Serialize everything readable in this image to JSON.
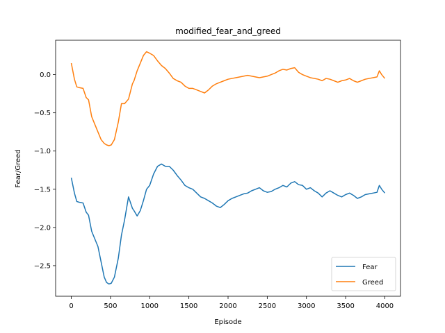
{
  "chart_data": {
    "type": "line",
    "title": "modified_fear_and_greed",
    "xlabel": "Episode",
    "ylabel": "Fear/Greed",
    "xlim": [
      -200,
      4200
    ],
    "ylim": [
      -2.9,
      0.45
    ],
    "xticks": [
      0,
      500,
      1000,
      1500,
      2000,
      2500,
      3000,
      3500,
      4000
    ],
    "xtick_labels": [
      "0",
      "500",
      "1000",
      "1500",
      "2000",
      "2500",
      "3000",
      "3500",
      "4000"
    ],
    "yticks": [
      -2.5,
      -2.0,
      -1.5,
      -1.0,
      -0.5,
      0.0
    ],
    "ytick_labels": [
      "−2.5",
      "−2.0",
      "−1.5",
      "−1.0",
      "−0.5",
      "0.0"
    ],
    "grid": false,
    "legend_position": "lower-right",
    "series": [
      {
        "name": "Fear",
        "color": "#1f77b4",
        "x": [
          0,
          40,
          70,
          100,
          150,
          190,
          220,
          260,
          300,
          340,
          380,
          420,
          450,
          480,
          510,
          550,
          600,
          640,
          680,
          730,
          780,
          800,
          840,
          880,
          920,
          960,
          1000,
          1050,
          1100,
          1150,
          1200,
          1250,
          1300,
          1350,
          1400,
          1450,
          1500,
          1550,
          1600,
          1650,
          1700,
          1750,
          1800,
          1850,
          1900,
          1950,
          2000,
          2050,
          2100,
          2150,
          2200,
          2250,
          2300,
          2350,
          2400,
          2450,
          2500,
          2550,
          2600,
          2650,
          2700,
          2750,
          2800,
          2850,
          2900,
          2950,
          3000,
          3050,
          3100,
          3150,
          3200,
          3250,
          3300,
          3350,
          3400,
          3450,
          3500,
          3550,
          3600,
          3650,
          3700,
          3750,
          3800,
          3850,
          3900,
          3930,
          3960,
          4000
        ],
        "y": [
          -1.35,
          -1.55,
          -1.66,
          -1.67,
          -1.68,
          -1.8,
          -1.84,
          -2.05,
          -2.15,
          -2.25,
          -2.45,
          -2.65,
          -2.72,
          -2.74,
          -2.73,
          -2.65,
          -2.4,
          -2.1,
          -1.9,
          -1.6,
          -1.75,
          -1.78,
          -1.85,
          -1.78,
          -1.65,
          -1.5,
          -1.45,
          -1.3,
          -1.2,
          -1.17,
          -1.2,
          -1.2,
          -1.25,
          -1.32,
          -1.38,
          -1.45,
          -1.48,
          -1.5,
          -1.55,
          -1.6,
          -1.62,
          -1.65,
          -1.68,
          -1.72,
          -1.74,
          -1.7,
          -1.65,
          -1.62,
          -1.6,
          -1.58,
          -1.56,
          -1.55,
          -1.52,
          -1.5,
          -1.48,
          -1.52,
          -1.54,
          -1.53,
          -1.5,
          -1.48,
          -1.45,
          -1.47,
          -1.42,
          -1.4,
          -1.44,
          -1.45,
          -1.5,
          -1.48,
          -1.52,
          -1.55,
          -1.6,
          -1.55,
          -1.52,
          -1.55,
          -1.58,
          -1.6,
          -1.57,
          -1.55,
          -1.58,
          -1.62,
          -1.6,
          -1.57,
          -1.56,
          -1.55,
          -1.54,
          -1.45,
          -1.5,
          -1.55
        ]
      },
      {
        "name": "Greed",
        "color": "#ff7f0e",
        "x": [
          0,
          40,
          70,
          100,
          150,
          190,
          220,
          260,
          300,
          340,
          380,
          420,
          450,
          480,
          510,
          550,
          600,
          640,
          680,
          730,
          780,
          800,
          840,
          880,
          920,
          960,
          1000,
          1050,
          1100,
          1150,
          1200,
          1250,
          1300,
          1350,
          1400,
          1450,
          1500,
          1550,
          1600,
          1650,
          1700,
          1750,
          1800,
          1850,
          1900,
          1950,
          2000,
          2050,
          2100,
          2150,
          2200,
          2250,
          2300,
          2350,
          2400,
          2450,
          2500,
          2550,
          2600,
          2650,
          2700,
          2750,
          2800,
          2850,
          2900,
          2950,
          3000,
          3050,
          3100,
          3150,
          3200,
          3250,
          3300,
          3350,
          3400,
          3450,
          3500,
          3550,
          3600,
          3650,
          3700,
          3750,
          3800,
          3850,
          3900,
          3930,
          3960,
          4000
        ],
        "y": [
          0.15,
          -0.06,
          -0.16,
          -0.17,
          -0.18,
          -0.3,
          -0.33,
          -0.55,
          -0.65,
          -0.75,
          -0.85,
          -0.9,
          -0.92,
          -0.93,
          -0.92,
          -0.85,
          -0.62,
          -0.38,
          -0.38,
          -0.32,
          -0.12,
          -0.08,
          0.05,
          0.15,
          0.25,
          0.3,
          0.28,
          0.25,
          0.18,
          0.12,
          0.08,
          0.02,
          -0.05,
          -0.08,
          -0.1,
          -0.15,
          -0.18,
          -0.18,
          -0.2,
          -0.22,
          -0.24,
          -0.2,
          -0.15,
          -0.12,
          -0.1,
          -0.08,
          -0.06,
          -0.05,
          -0.04,
          -0.03,
          -0.02,
          -0.01,
          -0.02,
          -0.03,
          -0.04,
          -0.03,
          -0.02,
          0.0,
          0.02,
          0.05,
          0.07,
          0.06,
          0.08,
          0.09,
          0.03,
          0.0,
          -0.02,
          -0.04,
          -0.05,
          -0.06,
          -0.08,
          -0.05,
          -0.06,
          -0.08,
          -0.1,
          -0.08,
          -0.07,
          -0.05,
          -0.08,
          -0.1,
          -0.08,
          -0.06,
          -0.05,
          -0.04,
          -0.03,
          0.05,
          0.0,
          -0.05
        ]
      }
    ]
  }
}
